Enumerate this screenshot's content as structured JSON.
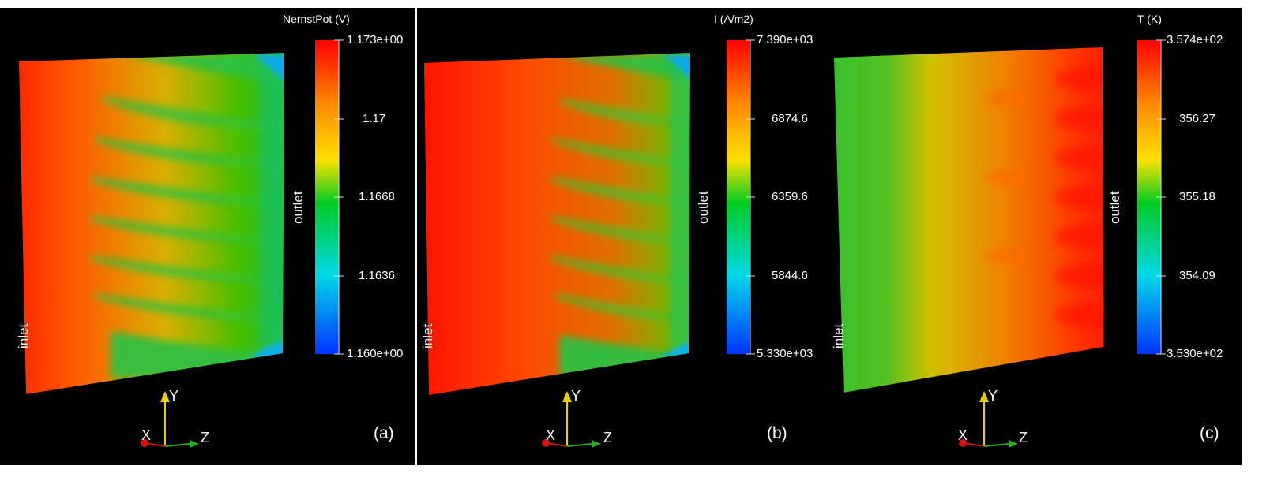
{
  "panels": [
    {
      "id": "a",
      "colorbar_title": "NernstPot (V)",
      "ticks": [
        "1.173e+00",
        "1.17",
        "1.1668",
        "1.1636",
        "1.160e+00"
      ],
      "inlet_label": "inlet",
      "outlet_label": "outlet",
      "panel_label": "(a)",
      "axis_labels": {
        "x": "X",
        "y": "Y",
        "z": "Z"
      }
    },
    {
      "id": "b",
      "colorbar_title": "I (A/m2)",
      "ticks": [
        "7.390e+03",
        "6874.6",
        "6359.6",
        "5844.6",
        "5.330e+03"
      ],
      "inlet_label": "inlet",
      "outlet_label": "outlet",
      "panel_label": "(b)",
      "axis_labels": {
        "x": "X",
        "y": "Y",
        "z": "Z"
      }
    },
    {
      "id": "c",
      "colorbar_title": "T (K)",
      "ticks": [
        "3.574e+02",
        "356.27",
        "355.18",
        "354.09",
        "3.530e+02"
      ],
      "inlet_label": "inlet",
      "outlet_label": "outlet",
      "panel_label": "(c)",
      "axis_labels": {
        "x": "X",
        "y": "Y",
        "z": "Z"
      }
    }
  ],
  "colormap": [
    "#ff0000",
    "#ff9900",
    "#ffee00",
    "#00cc33",
    "#00ccee",
    "#0044ff"
  ]
}
